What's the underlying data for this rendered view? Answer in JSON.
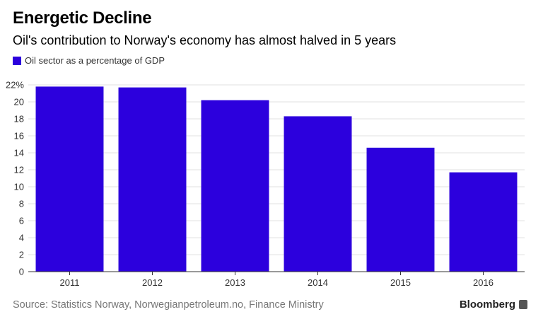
{
  "header": {
    "title": "Energetic Decline",
    "subtitle": "Oil's contribution to Norway's economy has almost halved in 5 years"
  },
  "legend": {
    "label": "Oil sector as a percentage of GDP",
    "color": "#2c00dd"
  },
  "footer": {
    "source": "Source: Statistics Norway, Norwegianpetroleum.no, Finance Ministry",
    "brand": "Bloomberg"
  },
  "chart_data": {
    "type": "bar",
    "title": "Energetic Decline",
    "subtitle": "Oil's contribution to Norway's economy has almost halved in 5 years",
    "categories": [
      "2011",
      "2012",
      "2013",
      "2014",
      "2015",
      "2016"
    ],
    "series": [
      {
        "name": "Oil sector as a percentage of GDP",
        "values": [
          21.8,
          21.7,
          20.2,
          18.3,
          14.6,
          11.7
        ],
        "color": "#2c00dd"
      }
    ],
    "ylim": [
      0,
      22
    ],
    "yticks": [
      0,
      2,
      4,
      6,
      8,
      10,
      12,
      14,
      16,
      18,
      20,
      22
    ],
    "ytick_labels": [
      "0",
      "2",
      "4",
      "6",
      "8",
      "10",
      "12",
      "14",
      "16",
      "18",
      "20",
      "22%"
    ],
    "grid": true,
    "legend_position": "top-left",
    "xlabel": "",
    "ylabel": ""
  }
}
